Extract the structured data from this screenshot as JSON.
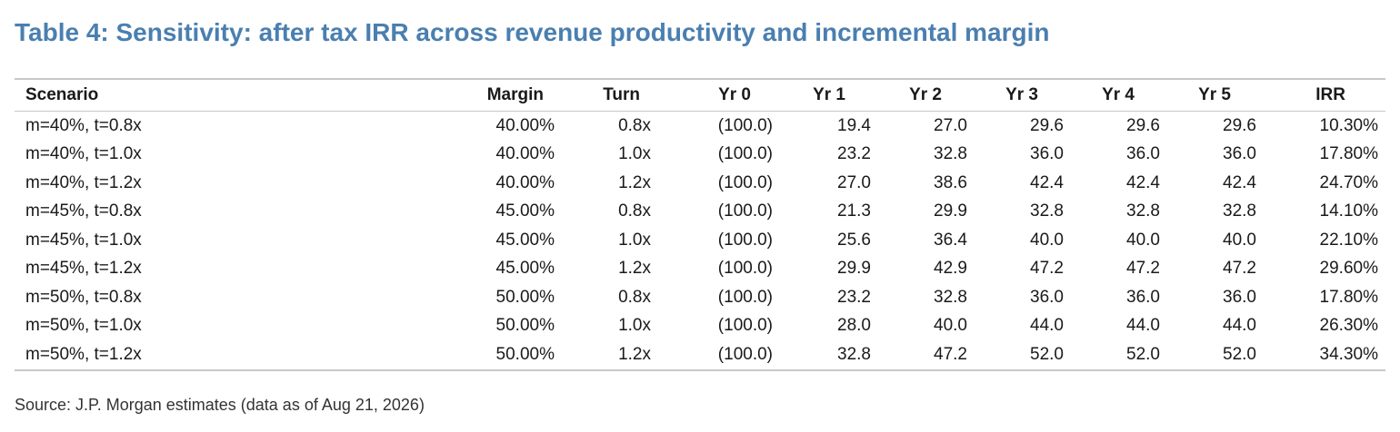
{
  "title": "Table 4: Sensitivity: after tax IRR across revenue productivity and incremental margin",
  "table": {
    "headers": {
      "scenario": "Scenario",
      "margin": "Margin",
      "turn": "Turn",
      "yr0": "Yr 0",
      "yr1": "Yr 1",
      "yr2": "Yr 2",
      "yr3": "Yr 3",
      "yr4": "Yr 4",
      "yr5": "Yr 5",
      "irr": "IRR"
    },
    "rows": [
      {
        "scenario": "m=40%, t=0.8x",
        "margin": "40.00%",
        "turn": "0.8x",
        "yr0": "(100.0)",
        "yr1": "19.4",
        "yr2": "27.0",
        "yr3": "29.6",
        "yr4": "29.6",
        "yr5": "29.6",
        "irr": "10.30%"
      },
      {
        "scenario": "m=40%, t=1.0x",
        "margin": "40.00%",
        "turn": "1.0x",
        "yr0": "(100.0)",
        "yr1": "23.2",
        "yr2": "32.8",
        "yr3": "36.0",
        "yr4": "36.0",
        "yr5": "36.0",
        "irr": "17.80%"
      },
      {
        "scenario": "m=40%, t=1.2x",
        "margin": "40.00%",
        "turn": "1.2x",
        "yr0": "(100.0)",
        "yr1": "27.0",
        "yr2": "38.6",
        "yr3": "42.4",
        "yr4": "42.4",
        "yr5": "42.4",
        "irr": "24.70%"
      },
      {
        "scenario": "m=45%, t=0.8x",
        "margin": "45.00%",
        "turn": "0.8x",
        "yr0": "(100.0)",
        "yr1": "21.3",
        "yr2": "29.9",
        "yr3": "32.8",
        "yr4": "32.8",
        "yr5": "32.8",
        "irr": "14.10%"
      },
      {
        "scenario": "m=45%, t=1.0x",
        "margin": "45.00%",
        "turn": "1.0x",
        "yr0": "(100.0)",
        "yr1": "25.6",
        "yr2": "36.4",
        "yr3": "40.0",
        "yr4": "40.0",
        "yr5": "40.0",
        "irr": "22.10%"
      },
      {
        "scenario": "m=45%, t=1.2x",
        "margin": "45.00%",
        "turn": "1.2x",
        "yr0": "(100.0)",
        "yr1": "29.9",
        "yr2": "42.9",
        "yr3": "47.2",
        "yr4": "47.2",
        "yr5": "47.2",
        "irr": "29.60%"
      },
      {
        "scenario": "m=50%, t=0.8x",
        "margin": "50.00%",
        "turn": "0.8x",
        "yr0": "(100.0)",
        "yr1": "23.2",
        "yr2": "32.8",
        "yr3": "36.0",
        "yr4": "36.0",
        "yr5": "36.0",
        "irr": "17.80%"
      },
      {
        "scenario": "m=50%, t=1.0x",
        "margin": "50.00%",
        "turn": "1.0x",
        "yr0": "(100.0)",
        "yr1": "28.0",
        "yr2": "40.0",
        "yr3": "44.0",
        "yr4": "44.0",
        "yr5": "44.0",
        "irr": "26.30%"
      },
      {
        "scenario": "m=50%, t=1.2x",
        "margin": "50.00%",
        "turn": "1.2x",
        "yr0": "(100.0)",
        "yr1": "32.8",
        "yr2": "47.2",
        "yr3": "52.0",
        "yr4": "52.0",
        "yr5": "52.0",
        "irr": "34.30%"
      }
    ]
  },
  "source": "Source: J.P. Morgan estimates (data as of Aug 21, 2026)"
}
